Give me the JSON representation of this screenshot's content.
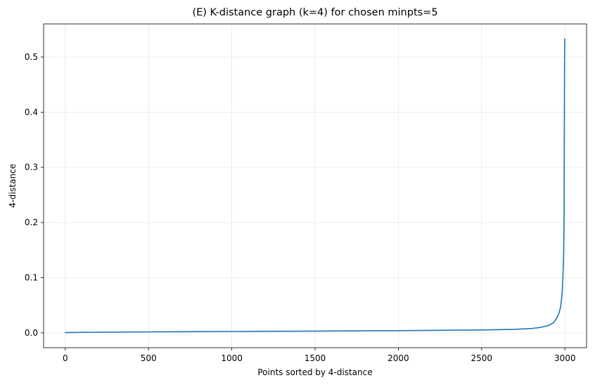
{
  "chart_data": {
    "type": "line",
    "title": "(E) K-distance graph (k=4) for chosen minpts=5",
    "xlabel": "Points sorted by 4-distance",
    "ylabel": "4-distance",
    "xlim": [
      -130,
      3130
    ],
    "ylim": [
      -0.027,
      0.56
    ],
    "grid": true,
    "xticks": [
      0,
      500,
      1000,
      1500,
      2000,
      2500,
      3000
    ],
    "xtick_labels": [
      "0",
      "500",
      "1000",
      "1500",
      "2000",
      "2500",
      "3000"
    ],
    "yticks": [
      0.0,
      0.1,
      0.2,
      0.3,
      0.4,
      0.5
    ],
    "ytick_labels": [
      "0.0",
      "0.1",
      "0.2",
      "0.3",
      "0.4",
      "0.5"
    ],
    "series": [
      {
        "color": "#1f77b4",
        "x": [
          0,
          100,
          500,
          1000,
          1500,
          2000,
          2500,
          2700,
          2800,
          2850,
          2900,
          2930,
          2950,
          2965,
          2975,
          2983,
          2988,
          2992,
          2994,
          2995,
          2996,
          2997,
          2998,
          2999
        ],
        "y": [
          0.0004,
          0.0008,
          0.0017,
          0.0025,
          0.0031,
          0.0039,
          0.0052,
          0.0063,
          0.0078,
          0.0096,
          0.013,
          0.018,
          0.026,
          0.036,
          0.048,
          0.07,
          0.1,
          0.14,
          0.18,
          0.215,
          0.32,
          0.42,
          0.5,
          0.533
        ]
      }
    ]
  }
}
